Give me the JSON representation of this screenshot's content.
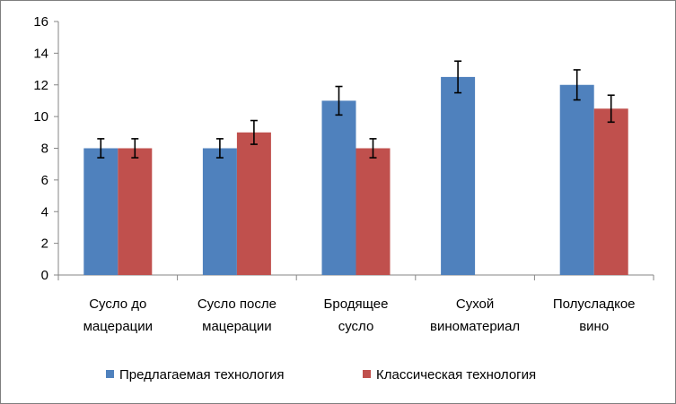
{
  "chart_data": {
    "type": "bar",
    "title": "",
    "xlabel": "",
    "ylabel": "",
    "ylim": [
      0,
      16
    ],
    "yticks": [
      0,
      2,
      4,
      6,
      8,
      10,
      12,
      14,
      16
    ],
    "grid": false,
    "legend_position": "bottom",
    "categories": [
      [
        "Сусло до",
        "мацерации"
      ],
      [
        "Сусло после",
        "мацерации"
      ],
      [
        "Бродящее",
        "сусло"
      ],
      [
        "Сухой",
        "виноматериал"
      ],
      [
        "Полусладкое",
        "вино"
      ]
    ],
    "series": [
      {
        "name": "Предлагаемая технология",
        "color": "#4f81bd",
        "values": [
          8,
          8,
          11,
          12.5,
          12
        ],
        "errors": [
          0.6,
          0.6,
          0.9,
          1.0,
          0.95
        ]
      },
      {
        "name": "Классическая технология",
        "color": "#c0504d",
        "values": [
          8,
          9,
          8,
          null,
          10.5
        ],
        "errors": [
          0.6,
          0.75,
          0.6,
          null,
          0.85
        ]
      }
    ]
  }
}
